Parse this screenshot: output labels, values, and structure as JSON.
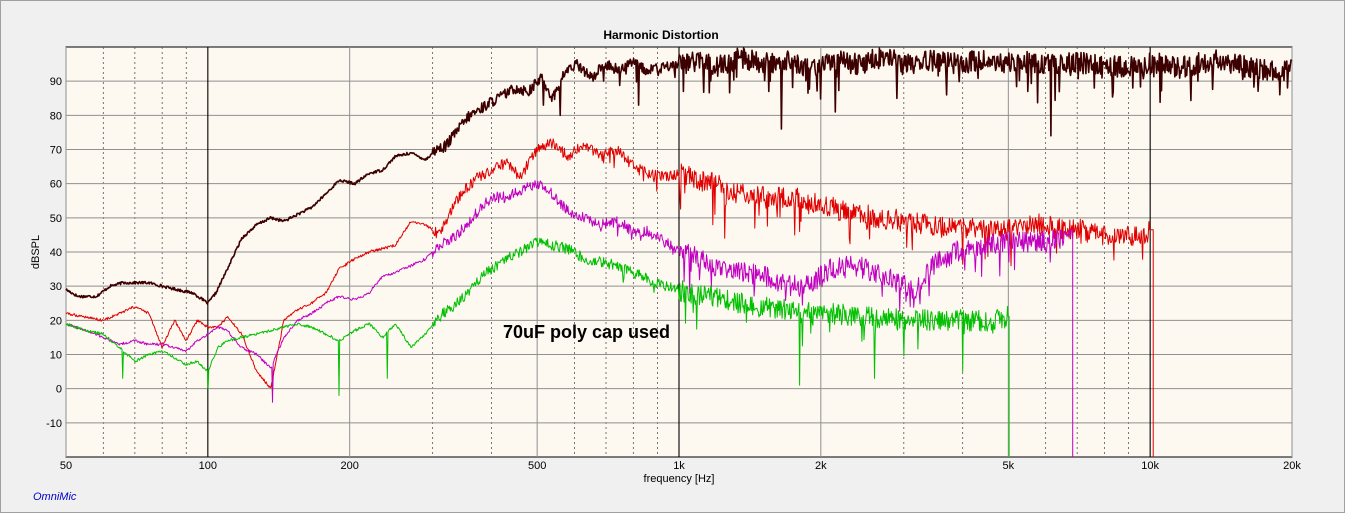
{
  "app": {
    "brand": "OmniMic"
  },
  "chart_data": {
    "type": "line",
    "title": "Harmonic Distortion",
    "xlabel": "frequency [Hz]",
    "ylabel": "dBSPL",
    "xscale": "log",
    "xlim": [
      50,
      20000
    ],
    "ylim": [
      -20,
      100
    ],
    "x_ticks": [
      {
        "v": 50,
        "label": "50"
      },
      {
        "v": 100,
        "label": "100"
      },
      {
        "v": 200,
        "label": "200"
      },
      {
        "v": 500,
        "label": "500"
      },
      {
        "v": 1000,
        "label": "1k"
      },
      {
        "v": 2000,
        "label": "2k"
      },
      {
        "v": 5000,
        "label": "5k"
      },
      {
        "v": 10000,
        "label": "10k"
      },
      {
        "v": 20000,
        "label": "20k"
      }
    ],
    "y_ticks": [
      {
        "v": 90,
        "label": "90"
      },
      {
        "v": 80,
        "label": "80"
      },
      {
        "v": 70,
        "label": "70"
      },
      {
        "v": 60,
        "label": "60"
      },
      {
        "v": 50,
        "label": "50"
      },
      {
        "v": 40,
        "label": "40"
      },
      {
        "v": 30,
        "label": "30"
      },
      {
        "v": 20,
        "label": "20"
      },
      {
        "v": 10,
        "label": "10"
      },
      {
        "v": 0,
        "label": "0"
      },
      {
        "v": -10,
        "label": "-10"
      }
    ],
    "grid": true,
    "annotation": "70uF poly cap used",
    "background_color": "#fdf8f0",
    "series": [
      {
        "color": "#3c0000",
        "x": [
          50,
          53,
          58,
          62,
          66,
          70,
          75,
          80,
          86,
          93,
          100,
          104,
          110,
          118,
          127,
          136,
          145,
          155,
          166,
          178,
          190,
          205,
          220,
          235,
          250,
          270,
          290,
          305,
          320,
          340,
          360,
          380,
          400,
          425,
          450,
          480,
          510,
          540,
          575,
          610,
          650,
          700,
          750,
          800,
          860,
          930,
          1000,
          1100,
          1200,
          1350,
          1500,
          1700,
          1900,
          2100,
          2400,
          2700,
          3000,
          3400,
          3800,
          4300,
          4800,
          5300,
          5800,
          6300,
          6800,
          7400,
          8000,
          8800,
          9600,
          10500,
          11500,
          12500,
          13700,
          15000,
          16500,
          18000,
          19500,
          20000
        ],
        "y": [
          29,
          27,
          27,
          30,
          31,
          31,
          31,
          30,
          29,
          28,
          25,
          28,
          35,
          44,
          48,
          50,
          49,
          51,
          53,
          57,
          61,
          60,
          63,
          64,
          68,
          69,
          67,
          70,
          71,
          76,
          80,
          82,
          84,
          86,
          88,
          87,
          91,
          85,
          93,
          95,
          91,
          95,
          93,
          96,
          93,
          94,
          95,
          96,
          94,
          97,
          95,
          96,
          94,
          96,
          95,
          97,
          95,
          96,
          95,
          96,
          95,
          96,
          95,
          95,
          96,
          95,
          95,
          94,
          95,
          95,
          94,
          95,
          96,
          95,
          94,
          93,
          93,
          93
        ],
        "dips": [
          {
            "x": 515,
            "y": 83
          },
          {
            "x": 560,
            "y": 80
          },
          {
            "x": 820,
            "y": 83
          },
          {
            "x": 1020,
            "y": 87
          },
          {
            "x": 1650,
            "y": 76
          },
          {
            "x": 2150,
            "y": 81
          },
          {
            "x": 2900,
            "y": 85
          },
          {
            "x": 3700,
            "y": 86
          },
          {
            "x": 5500,
            "y": 87
          },
          {
            "x": 6150,
            "y": 74
          },
          {
            "x": 7600,
            "y": 88
          },
          {
            "x": 9200,
            "y": 88
          }
        ]
      },
      {
        "color": "#e00000",
        "x": [
          50,
          55,
          60,
          65,
          70,
          75,
          80,
          85,
          90,
          95,
          100,
          105,
          110,
          118,
          127,
          136,
          145,
          155,
          166,
          178,
          190,
          205,
          220,
          235,
          250,
          270,
          290,
          310,
          330,
          350,
          375,
          400,
          430,
          460,
          500,
          540,
          580,
          630,
          680,
          740,
          800,
          860,
          930,
          1000,
          1100,
          1200,
          1350,
          1500,
          1700,
          1900,
          2100,
          2400,
          2700,
          3000,
          3400,
          3800,
          4300,
          4800,
          5300,
          5800,
          6300,
          6800,
          7400,
          8000,
          8800,
          9600,
          10000
        ],
        "y": [
          22,
          21,
          20,
          22,
          24,
          22,
          12,
          20,
          14,
          20,
          18,
          18,
          21,
          16,
          5,
          0,
          20,
          23,
          25,
          28,
          35,
          38,
          40,
          41,
          42,
          49,
          48,
          45,
          53,
          58,
          62,
          64,
          66,
          62,
          70,
          72,
          68,
          72,
          68,
          70,
          65,
          63,
          62,
          63,
          61,
          60,
          57,
          56,
          56,
          55,
          53,
          51,
          50,
          49,
          48,
          47,
          47,
          46,
          47,
          48,
          47,
          47,
          46,
          45,
          45,
          45,
          46
        ],
        "dips": [
          {
            "x": 137,
            "y": -1
          },
          {
            "x": 1180,
            "y": 48
          },
          {
            "x": 1250,
            "y": 44
          },
          {
            "x": 1450,
            "y": 47
          },
          {
            "x": 1800,
            "y": 46
          },
          {
            "x": 2300,
            "y": 44
          }
        ],
        "tail": {
          "x": 10150,
          "y": -20
        }
      },
      {
        "color": "#c000c0",
        "x": [
          50,
          55,
          60,
          65,
          70,
          75,
          80,
          85,
          90,
          95,
          100,
          105,
          110,
          118,
          127,
          136,
          145,
          155,
          166,
          178,
          190,
          205,
          220,
          235,
          250,
          270,
          290,
          310,
          330,
          350,
          375,
          400,
          430,
          460,
          500,
          540,
          580,
          630,
          680,
          740,
          800,
          860,
          930,
          1000,
          1100,
          1200,
          1350,
          1500,
          1700,
          1900,
          2100,
          2400,
          2700,
          3000,
          3200,
          3500,
          4000,
          4500,
          5000,
          5500,
          6000,
          6500,
          6800
        ],
        "y": [
          19,
          17,
          15,
          13,
          14,
          13,
          13,
          12,
          11,
          14,
          16,
          18,
          17,
          12,
          10,
          6,
          15,
          20,
          22,
          25,
          27,
          26,
          28,
          33,
          34,
          36,
          38,
          42,
          44,
          47,
          52,
          56,
          56,
          58,
          60,
          57,
          52,
          50,
          48,
          49,
          46,
          46,
          43,
          41,
          38,
          36,
          34,
          33,
          30,
          31,
          35,
          36,
          33,
          30,
          29,
          37,
          41,
          42,
          43,
          43,
          43,
          44,
          44
        ],
        "dips": [
          {
            "x": 137,
            "y": -4
          },
          {
            "x": 1300,
            "y": 33
          },
          {
            "x": 1800,
            "y": 27
          },
          {
            "x": 2700,
            "y": 27
          },
          {
            "x": 3100,
            "y": 24
          }
        ],
        "tail": {
          "x": 6850,
          "y": -20
        }
      },
      {
        "color": "#00c000",
        "x": [
          50,
          55,
          60,
          65,
          70,
          75,
          80,
          85,
          90,
          95,
          100,
          105,
          110,
          118,
          127,
          136,
          145,
          155,
          166,
          178,
          190,
          205,
          220,
          235,
          250,
          270,
          290,
          310,
          330,
          350,
          375,
          400,
          430,
          460,
          500,
          540,
          580,
          630,
          680,
          740,
          800,
          860,
          930,
          1000,
          1100,
          1200,
          1350,
          1500,
          1700,
          1900,
          2100,
          2400,
          2700,
          3000,
          3400,
          3800,
          4300,
          4800,
          5000
        ],
        "y": [
          19,
          17,
          16,
          12,
          8,
          10,
          11,
          9,
          7,
          8,
          5,
          12,
          14,
          15,
          16,
          17,
          18,
          19,
          18,
          16,
          14,
          17,
          19,
          15,
          19,
          12,
          16,
          21,
          24,
          27,
          32,
          35,
          38,
          40,
          43,
          42,
          41,
          38,
          37,
          36,
          34,
          32,
          30,
          29,
          27,
          27,
          25,
          24,
          23,
          22,
          22,
          21,
          21,
          20,
          20,
          20,
          20,
          20,
          21
        ],
        "dips": [
          {
            "x": 66,
            "y": 3
          },
          {
            "x": 100,
            "y": 0
          },
          {
            "x": 190,
            "y": -2
          },
          {
            "x": 240,
            "y": 3
          },
          {
            "x": 1800,
            "y": 1
          },
          {
            "x": 2600,
            "y": 3
          },
          {
            "x": 4000,
            "y": 5
          }
        ],
        "tail": {
          "x": 5020,
          "y": -20
        }
      }
    ]
  }
}
